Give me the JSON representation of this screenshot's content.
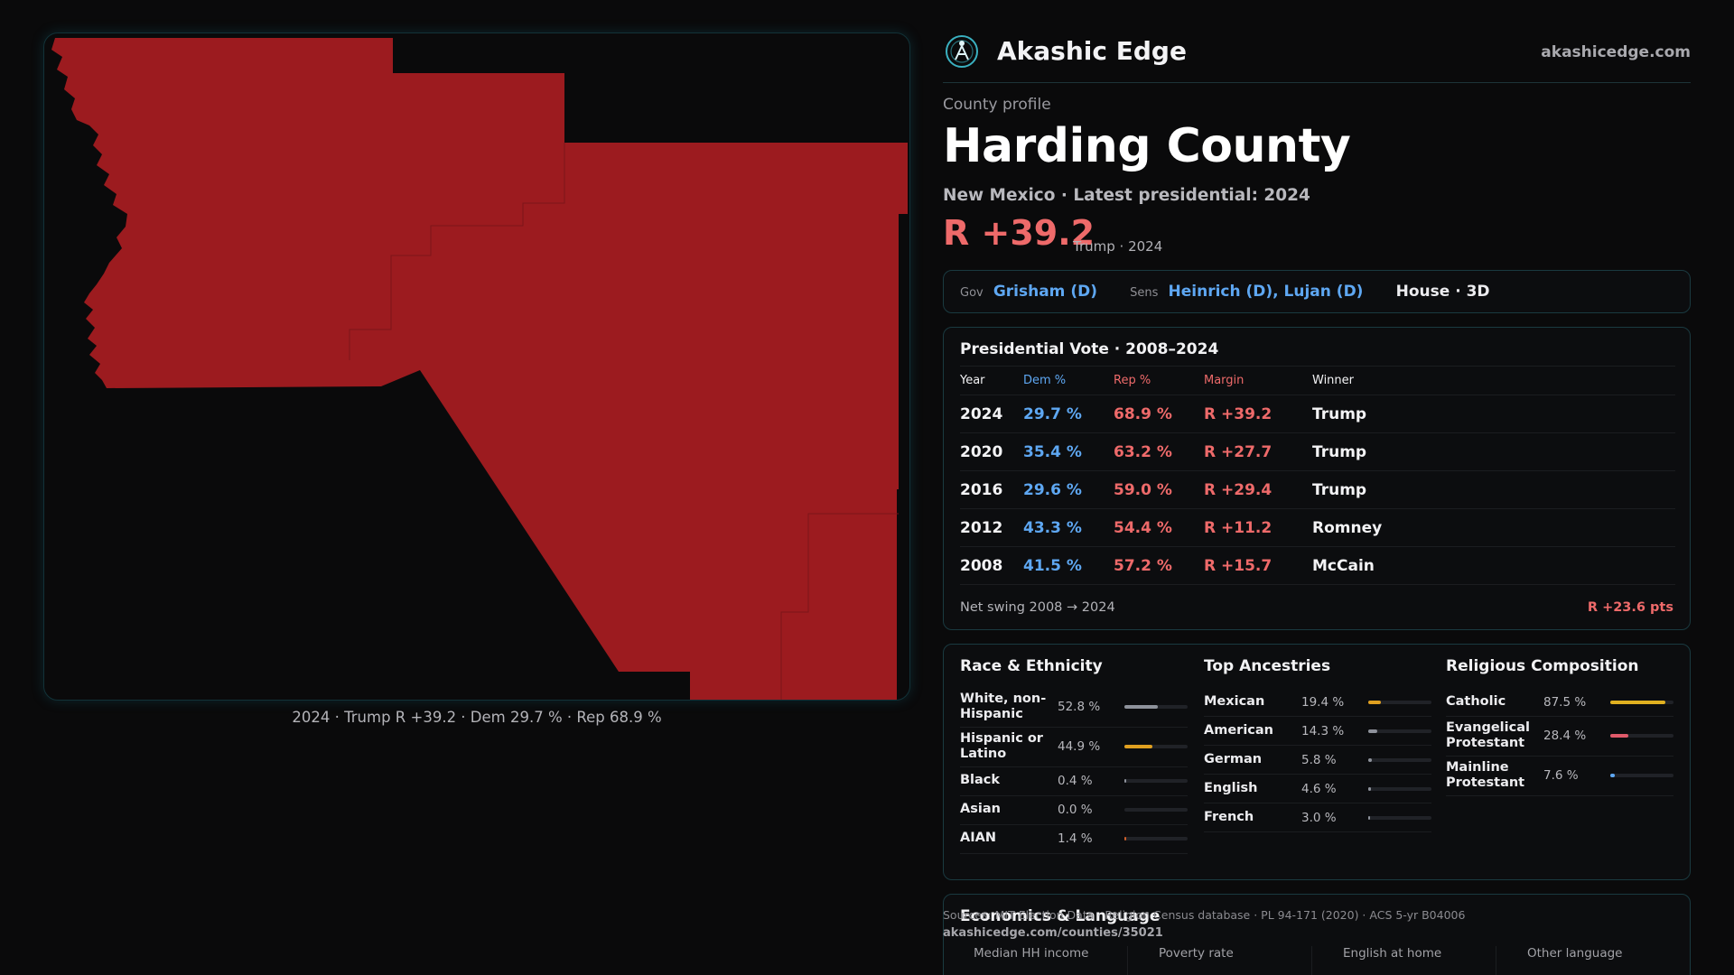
{
  "map": {
    "fill_color": "#9c1b1f",
    "border_color": "#123238",
    "caption": "2024 · Trump R +39.2 · Dem 29.7 % · Rep 68.9 %"
  },
  "brand": {
    "name": "Akashic Edge",
    "url": "akashicedge.com",
    "logo_icon": "globe-emblem-icon"
  },
  "profile": {
    "eyebrow": "County profile",
    "title": "Harding County",
    "subline": "New Mexico · Latest presidential: 2024",
    "margin": "R +39.2",
    "margin_note": "Trump · 2024"
  },
  "officials": {
    "gov_label": "Gov",
    "gov_value": "Grisham (D)",
    "sens_label": "Sens",
    "sens_value": "Heinrich (D), Lujan (D)",
    "house": "House · 3D"
  },
  "presidential": {
    "title": "Presidential Vote · 2008–2024",
    "columns": [
      "Year",
      "Dem %",
      "Rep %",
      "Margin",
      "Winner"
    ],
    "rows": [
      {
        "year": "2024",
        "dem": "29.7 %",
        "rep": "68.9 %",
        "margin": "R +39.2",
        "winner": "Trump"
      },
      {
        "year": "2020",
        "dem": "35.4 %",
        "rep": "63.2 %",
        "margin": "R +27.7",
        "winner": "Trump"
      },
      {
        "year": "2016",
        "dem": "29.6 %",
        "rep": "59.0 %",
        "margin": "R +29.4",
        "winner": "Trump"
      },
      {
        "year": "2012",
        "dem": "43.3 %",
        "rep": "54.4 %",
        "margin": "R +11.2",
        "winner": "Romney"
      },
      {
        "year": "2008",
        "dem": "41.5 %",
        "rep": "57.2 %",
        "margin": "R +15.7",
        "winner": "McCain"
      }
    ],
    "swing_label": "Net swing 2008 → 2024",
    "swing_value": "R +23.6 pts"
  },
  "race": {
    "title": "Race & Ethnicity",
    "items": [
      {
        "label": "White, non-Hispanic",
        "pct": "52.8 %",
        "value": 52.8,
        "color": "#8e929b"
      },
      {
        "label": "Hispanic or Latino",
        "pct": "44.9 %",
        "value": 44.9,
        "color": "#e0a020"
      },
      {
        "label": "Black",
        "pct": "0.4 %",
        "value": 0.4,
        "color": "#8e929b"
      },
      {
        "label": "Asian",
        "pct": "0.0 %",
        "value": 0.0,
        "color": "#8e929b"
      },
      {
        "label": "AIAN",
        "pct": "1.4 %",
        "value": 1.4,
        "color": "#d0602a"
      }
    ]
  },
  "ancestry": {
    "title": "Top Ancestries",
    "items": [
      {
        "label": "Mexican",
        "pct": "19.4 %",
        "value": 19.4,
        "color": "#e0a020"
      },
      {
        "label": "American",
        "pct": "14.3 %",
        "value": 14.3,
        "color": "#8e929b"
      },
      {
        "label": "German",
        "pct": "5.8 %",
        "value": 5.8,
        "color": "#8e929b"
      },
      {
        "label": "English",
        "pct": "4.6 %",
        "value": 4.6,
        "color": "#8e929b"
      },
      {
        "label": "French",
        "pct": "3.0 %",
        "value": 3.0,
        "color": "#8e929b"
      }
    ]
  },
  "religion": {
    "title": "Religious Composition",
    "items": [
      {
        "label": "Catholic",
        "pct": "87.5 %",
        "value": 87.5,
        "color": "#e0b020"
      },
      {
        "label": "Evangelical Protestant",
        "pct": "28.4 %",
        "value": 28.4,
        "color": "#e05a6a"
      },
      {
        "label": "Mainline Protestant",
        "pct": "7.6 %",
        "value": 7.6,
        "color": "#5ea7f2"
      }
    ]
  },
  "economics": {
    "title": "Economics & Language",
    "sources": "Sources: MIT Election Data · Religion Census database · PL 94-171 (2020) · ACS 5-yr B04006",
    "source_url": "akashicedge.com/counties/35021",
    "stats": [
      {
        "label": "Median HH income",
        "value": ""
      },
      {
        "label": "Poverty rate",
        "value": ""
      },
      {
        "label": "English at home",
        "value": ""
      },
      {
        "label": "Other language",
        "value": ""
      }
    ]
  }
}
